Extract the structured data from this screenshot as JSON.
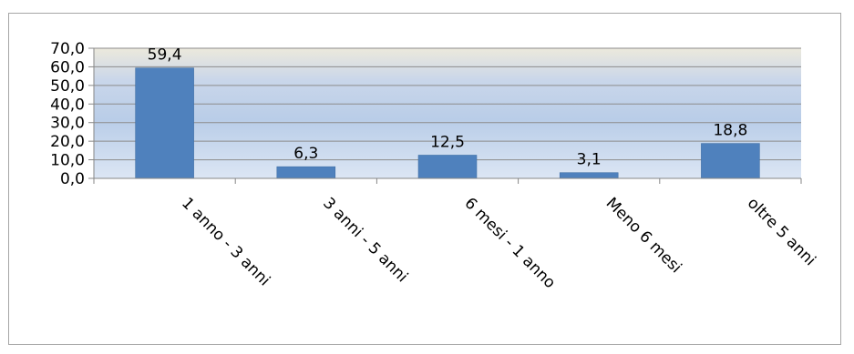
{
  "chart_data": {
    "type": "bar",
    "categories": [
      "1 anno - 3 anni",
      "3 anni - 5 anni",
      "6 mesi - 1 anno",
      "Meno 6 mesi",
      "oltre 5 anni"
    ],
    "values": [
      59.4,
      6.3,
      12.5,
      3.1,
      18.8
    ],
    "value_labels": [
      "59,4",
      "6,3",
      "12,5",
      "3,1",
      "18,8"
    ],
    "y_ticks": [
      "0,0",
      "10,0",
      "20,0",
      "30,0",
      "40,0",
      "50,0",
      "60,0",
      "70,0"
    ],
    "ylim": [
      0,
      70
    ],
    "y_step": 10,
    "grid": true,
    "legend": "none",
    "colors": {
      "bar": "#4f81bd",
      "bar_edge": "#3a6aa0",
      "grid": "#8c8c8c",
      "axis": "#868686",
      "plot_bg_top": "#ece9dc",
      "plot_bg_bottom": "#dce6f4"
    }
  }
}
